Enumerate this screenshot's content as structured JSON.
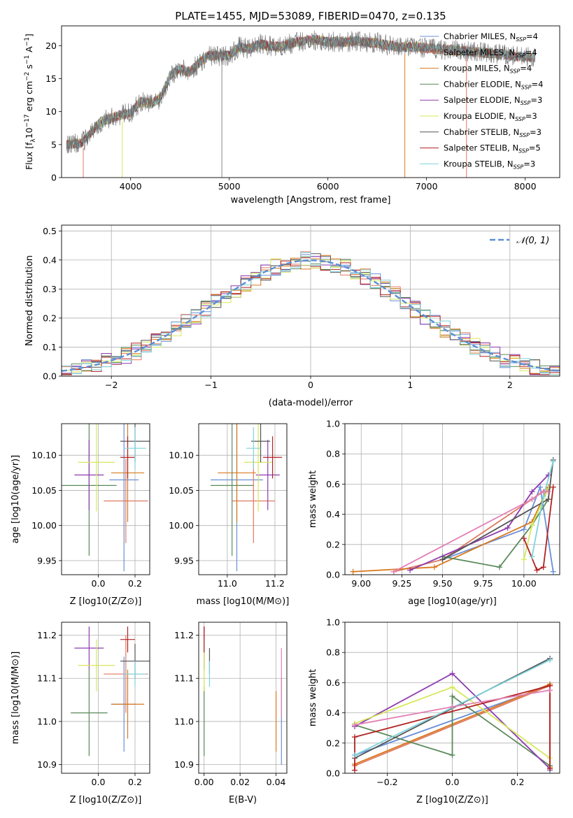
{
  "chart_data": [
    {
      "id": "spectrum",
      "type": "line",
      "title": "PLATE=1455, MJD=53089, FIBERID=0470, z=0.135",
      "xlabel": "wavelength [Angstrom, rest frame]",
      "ylabel": "Flux [f_λ 10^-17 erg cm^-2 s^-1 A^-1]",
      "xlim": [
        3300,
        8350
      ],
      "ylim": [
        0,
        23
      ],
      "xticks": [
        4000,
        5000,
        6000,
        7000,
        8000
      ],
      "yticks": [
        0,
        5,
        10,
        15,
        20
      ],
      "observed_spectrum": {
        "x": [
          3350,
          3500,
          3700,
          3900,
          4000,
          4100,
          4200,
          4300,
          4400,
          4500,
          4600,
          4700,
          4800,
          4900,
          5000,
          5100,
          5200,
          5300,
          5400,
          5500,
          5600,
          5700,
          5800,
          5900,
          6000,
          6100,
          6200,
          6300,
          6400,
          6500,
          6600,
          6700,
          6800,
          6900,
          7000,
          7100,
          7200,
          7300,
          7400,
          7500,
          7600,
          7700,
          7800,
          7900,
          8000,
          8100
        ],
        "y": [
          5.0,
          5.2,
          8.5,
          9.5,
          9.8,
          11.5,
          11.2,
          12.0,
          15.5,
          16.5,
          16.0,
          17.5,
          18.5,
          18.5,
          18.5,
          19.8,
          19.5,
          20.2,
          20.0,
          19.8,
          20.2,
          20.6,
          20.8,
          20.9,
          20.5,
          20.6,
          20.6,
          20.7,
          20.5,
          20.4,
          20.1,
          19.8,
          19.8,
          19.8,
          19.6,
          19.5,
          19.4,
          19.3,
          19.2,
          19.0,
          18.9,
          18.8,
          18.6,
          18.4,
          18.3,
          18.2
        ]
      },
      "legend_position": "upper right",
      "series": [
        {
          "name": "Chabrier MILES, N_SSP=4",
          "color": "#6a8fd8"
        },
        {
          "name": "Salpeter MILES, N_SSP=4",
          "color": "#e07a5f"
        },
        {
          "name": "Kroupa MILES, N_SSP=4",
          "color": "#d9781f"
        },
        {
          "name": "Chabrier ELODIE, N_SSP=4",
          "color": "#5b8a5b"
        },
        {
          "name": "Salpeter ELODIE, N_SSP=3",
          "color": "#8e3bb0"
        },
        {
          "name": "Kroupa ELODIE, N_SSP=3",
          "color": "#d6e85a"
        },
        {
          "name": "Chabrier STELIB, N_SSP=3",
          "color": "#555555"
        },
        {
          "name": "Salpeter STELIB, N_SSP=5",
          "color": "#b22222"
        },
        {
          "name": "Kroupa STELIB, N_SSP=3",
          "color": "#7fd3dc"
        }
      ]
    },
    {
      "id": "residual-hist",
      "type": "line",
      "xlabel": "(data-model)/error",
      "ylabel": "Normed distribution",
      "xlim": [
        -2.5,
        2.5
      ],
      "ylim": [
        0,
        0.52
      ],
      "xticks": [
        -2,
        -1,
        0,
        1,
        2
      ],
      "yticks": [
        0.0,
        0.1,
        0.2,
        0.3,
        0.4,
        0.5
      ],
      "grid": true,
      "legend": "𝒩(0, 1)",
      "gaussian": {
        "mean": 0,
        "sigma": 1
      }
    },
    {
      "id": "age-vs-z",
      "type": "scatter",
      "xlabel": "Z [log10(Z/Z⊙)]",
      "ylabel": "age [log10(age/yr)]",
      "xlim": [
        -0.2,
        0.28
      ],
      "ylim": [
        9.93,
        10.145
      ],
      "xticks": [
        0.0,
        0.2
      ],
      "yticks": [
        9.95,
        10.0,
        10.05,
        10.1
      ],
      "grid": true,
      "points": [
        {
          "x": 0.14,
          "y": 10.065,
          "xerr": 0.08,
          "yerr": 0.13,
          "color": "#6a8fd8"
        },
        {
          "x": 0.15,
          "y": 10.035,
          "xerr": 0.12,
          "yerr": 0.06,
          "color": "#e07a5f"
        },
        {
          "x": 0.16,
          "y": 10.075,
          "xerr": 0.09,
          "yerr": 0.07,
          "color": "#d9781f"
        },
        {
          "x": -0.05,
          "y": 10.057,
          "xerr": 0.15,
          "yerr": 0.1,
          "color": "#5b8a5b"
        },
        {
          "x": -0.05,
          "y": 10.072,
          "xerr": 0.08,
          "yerr": 0.05,
          "color": "#8e3bb0"
        },
        {
          "x": -0.01,
          "y": 10.09,
          "xerr": 0.1,
          "yerr": 0.07,
          "color": "#d6e85a"
        },
        {
          "x": 0.2,
          "y": 10.12,
          "xerr": 0.08,
          "yerr": 0.03,
          "color": "#555555"
        },
        {
          "x": 0.16,
          "y": 10.097,
          "xerr": 0.04,
          "yerr": 0.03,
          "color": "#b22222"
        },
        {
          "x": 0.2,
          "y": 10.11,
          "xerr": 0.06,
          "yerr": 0.03,
          "color": "#7fd3dc"
        }
      ]
    },
    {
      "id": "age-vs-mass",
      "type": "scatter",
      "xlabel": "mass [log10(M/M⊙)]",
      "ylabel": "",
      "xlim": [
        10.88,
        11.25
      ],
      "ylim": [
        9.93,
        10.145
      ],
      "xticks": [
        11.0,
        11.2
      ],
      "yticks": [
        9.95,
        10.0,
        10.05,
        10.1
      ],
      "grid": true,
      "points": [
        {
          "x": 11.04,
          "y": 10.065,
          "xerr": 0.11,
          "yerr": 0.13,
          "color": "#6a8fd8"
        },
        {
          "x": 11.11,
          "y": 10.035,
          "xerr": 0.09,
          "yerr": 0.06,
          "color": "#e07a5f"
        },
        {
          "x": 11.04,
          "y": 10.075,
          "xerr": 0.08,
          "yerr": 0.07,
          "color": "#d9781f"
        },
        {
          "x": 11.02,
          "y": 10.057,
          "xerr": 0.09,
          "yerr": 0.1,
          "color": "#5b8a5b"
        },
        {
          "x": 11.17,
          "y": 10.072,
          "xerr": 0.05,
          "yerr": 0.05,
          "color": "#8e3bb0"
        },
        {
          "x": 11.13,
          "y": 10.09,
          "xerr": 0.06,
          "yerr": 0.07,
          "color": "#d6e85a"
        },
        {
          "x": 11.14,
          "y": 10.12,
          "xerr": 0.04,
          "yerr": 0.03,
          "color": "#555555"
        },
        {
          "x": 11.19,
          "y": 10.097,
          "xerr": 0.04,
          "yerr": 0.03,
          "color": "#b22222"
        },
        {
          "x": 11.11,
          "y": 10.11,
          "xerr": 0.03,
          "yerr": 0.03,
          "color": "#7fd3dc"
        }
      ]
    },
    {
      "id": "weight-vs-age",
      "type": "line",
      "xlabel": "age [log10(age/yr)]",
      "ylabel": "mass weight",
      "xlim": [
        8.9,
        10.22
      ],
      "ylim": [
        0.0,
        1.0
      ],
      "xticks": [
        9.0,
        9.25,
        9.5,
        9.75,
        10.0
      ],
      "yticks": [
        0.0,
        0.2,
        0.4,
        0.6,
        0.8,
        1.0
      ],
      "grid": true,
      "series": [
        {
          "color": "#6a8fd8",
          "x": [
            9.5,
            10.0,
            10.1,
            10.18
          ],
          "y": [
            0.1,
            0.3,
            0.58,
            0.02
          ]
        },
        {
          "color": "#e07a5f",
          "x": [
            9.2,
            9.5,
            10.05,
            10.15
          ],
          "y": [
            0.02,
            0.1,
            0.5,
            0.58
          ]
        },
        {
          "color": "#d9781f",
          "x": [
            8.95,
            9.45,
            10.05,
            10.15
          ],
          "y": [
            0.02,
            0.05,
            0.35,
            0.58
          ]
        },
        {
          "color": "#5b8a5b",
          "x": [
            9.5,
            9.85,
            10.05,
            10.15
          ],
          "y": [
            0.12,
            0.05,
            0.33,
            0.5
          ]
        },
        {
          "color": "#8e3bb0",
          "x": [
            9.3,
            9.9,
            10.05,
            10.15
          ],
          "y": [
            0.03,
            0.31,
            0.55,
            0.66
          ]
        },
        {
          "color": "#d6e85a",
          "x": [
            10.0,
            10.05,
            10.15
          ],
          "y": [
            0.1,
            0.33,
            0.57
          ]
        },
        {
          "color": "#555555",
          "x": [
            9.5,
            10.15,
            10.18
          ],
          "y": [
            0.1,
            0.5,
            0.76
          ]
        },
        {
          "color": "#b22222",
          "x": [
            10.0,
            10.08,
            10.12,
            10.18
          ],
          "y": [
            0.24,
            0.03,
            0.05,
            0.58
          ]
        },
        {
          "color": "#7fd3dc",
          "x": [
            10.05,
            10.12,
            10.18
          ],
          "y": [
            0.12,
            0.52,
            0.75
          ]
        },
        {
          "color": "#e37fb5",
          "x": [
            9.2,
            10.05,
            10.12,
            10.15
          ],
          "y": [
            0.02,
            0.5,
            0.55,
            0.55
          ]
        }
      ]
    },
    {
      "id": "mass-vs-z",
      "type": "scatter",
      "xlabel": "Z [log10(Z/Z⊙)]",
      "ylabel": "mass [log10(M/M⊙)]",
      "xlim": [
        -0.2,
        0.28
      ],
      "ylim": [
        10.88,
        11.23
      ],
      "xticks": [
        0.0,
        0.2
      ],
      "yticks": [
        10.9,
        11.0,
        11.1,
        11.2
      ],
      "grid": true,
      "points": [
        {
          "x": 0.14,
          "y": 11.04,
          "xerr": 0.07,
          "yerr": 0.11,
          "color": "#6a8fd8"
        },
        {
          "x": 0.15,
          "y": 11.11,
          "xerr": 0.12,
          "yerr": 0.09,
          "color": "#e07a5f"
        },
        {
          "x": 0.16,
          "y": 11.04,
          "xerr": 0.09,
          "yerr": 0.08,
          "color": "#d9781f"
        },
        {
          "x": -0.05,
          "y": 11.02,
          "xerr": 0.1,
          "yerr": 0.1,
          "color": "#5b8a5b"
        },
        {
          "x": -0.05,
          "y": 11.17,
          "xerr": 0.08,
          "yerr": 0.05,
          "color": "#8e3bb0"
        },
        {
          "x": -0.01,
          "y": 11.13,
          "xerr": 0.1,
          "yerr": 0.06,
          "color": "#d6e85a"
        },
        {
          "x": 0.2,
          "y": 11.14,
          "xerr": 0.08,
          "yerr": 0.04,
          "color": "#555555"
        },
        {
          "x": 0.16,
          "y": 11.19,
          "xerr": 0.04,
          "yerr": 0.03,
          "color": "#b22222"
        },
        {
          "x": 0.2,
          "y": 11.11,
          "xerr": 0.06,
          "yerr": 0.03,
          "color": "#7fd3dc"
        }
      ]
    },
    {
      "id": "mass-vs-ebv",
      "type": "scatter",
      "xlabel": "E(B-V)",
      "ylabel": "",
      "xlim": [
        -0.003,
        0.046
      ],
      "ylim": [
        10.88,
        11.23
      ],
      "xticks": [
        0.0,
        0.02,
        0.04
      ],
      "yticks": [
        10.9,
        11.0,
        11.1,
        11.2
      ],
      "grid": true,
      "points": [
        {
          "x": 0.043,
          "y": 11.0,
          "xerr": 0,
          "yerr": 0.1,
          "color": "#6a8fd8"
        },
        {
          "x": 0.043,
          "y": 11.09,
          "xerr": 0,
          "yerr": 0.08,
          "color": "#e37fb5"
        },
        {
          "x": 0.04,
          "y": 11.0,
          "xerr": 0,
          "yerr": 0.07,
          "color": "#d9781f"
        },
        {
          "x": 0.0,
          "y": 11.0,
          "xerr": 0,
          "yerr": 0.08,
          "color": "#5b8a5b"
        },
        {
          "x": 0.0,
          "y": 11.17,
          "xerr": 0,
          "yerr": 0.05,
          "color": "#8e3bb0"
        },
        {
          "x": 0.0,
          "y": 11.13,
          "xerr": 0,
          "yerr": 0.06,
          "color": "#d6e85a"
        },
        {
          "x": 0.003,
          "y": 11.14,
          "xerr": 0,
          "yerr": 0.03,
          "color": "#555555"
        },
        {
          "x": 0.0,
          "y": 11.19,
          "xerr": 0,
          "yerr": 0.03,
          "color": "#b22222"
        },
        {
          "x": 0.003,
          "y": 11.11,
          "xerr": 0,
          "yerr": 0.03,
          "color": "#7fd3dc"
        }
      ]
    },
    {
      "id": "weight-vs-z",
      "type": "line",
      "xlabel": "Z [log10(Z/Z⊙)]",
      "ylabel": "mass weight",
      "xlim": [
        -0.33,
        0.33
      ],
      "ylim": [
        0.0,
        1.0
      ],
      "xticks": [
        -0.2,
        0.0,
        0.2
      ],
      "yticks": [
        0.0,
        0.2,
        0.4,
        0.6,
        0.8,
        1.0
      ],
      "grid": true,
      "series": [
        {
          "color": "#6a8fd8",
          "x": [
            -0.3,
            0.3,
            0.3
          ],
          "y": [
            0.12,
            0.58,
            0.02
          ]
        },
        {
          "color": "#e07a5f",
          "x": [
            -0.3,
            0.3,
            0.3
          ],
          "y": [
            0.05,
            0.58,
            0.03
          ]
        },
        {
          "color": "#d9781f",
          "x": [
            -0.3,
            0.3,
            0.3
          ],
          "y": [
            0.06,
            0.59,
            0.04
          ]
        },
        {
          "color": "#5b8a5b",
          "x": [
            -0.3,
            0.0,
            0.0,
            0.3
          ],
          "y": [
            0.32,
            0.12,
            0.51,
            0.05
          ]
        },
        {
          "color": "#8e3bb0",
          "x": [
            -0.3,
            0.0,
            0.3
          ],
          "y": [
            0.31,
            0.66,
            0.03
          ]
        },
        {
          "color": "#d6e85a",
          "x": [
            -0.3,
            0.0,
            0.3
          ],
          "y": [
            0.33,
            0.57,
            0.1
          ]
        },
        {
          "color": "#555555",
          "x": [
            -0.3,
            0.3
          ],
          "y": [
            0.1,
            0.76
          ]
        },
        {
          "color": "#b22222",
          "x": [
            -0.3,
            -0.3,
            0.3,
            0.3
          ],
          "y": [
            0.02,
            0.24,
            0.58,
            0.03
          ]
        },
        {
          "color": "#7fd3dc",
          "x": [
            -0.3,
            0.3
          ],
          "y": [
            0.12,
            0.75
          ]
        },
        {
          "color": "#e37fb5",
          "x": [
            -0.3,
            0.0,
            0.3
          ],
          "y": [
            0.32,
            0.44,
            0.55
          ]
        }
      ]
    }
  ]
}
